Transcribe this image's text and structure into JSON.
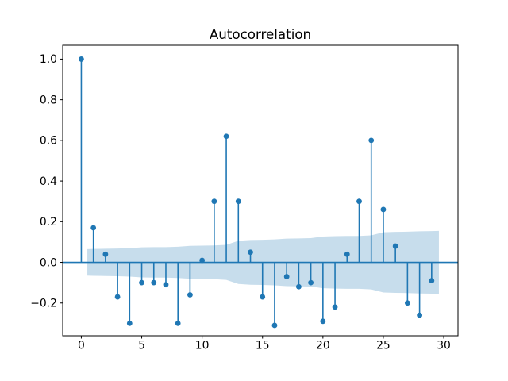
{
  "chart_data": {
    "type": "stem",
    "title": "Autocorrelation",
    "xlabel": "",
    "ylabel": "",
    "x": [
      0,
      1,
      2,
      3,
      4,
      5,
      6,
      7,
      8,
      9,
      10,
      11,
      12,
      13,
      14,
      15,
      16,
      17,
      18,
      19,
      20,
      21,
      22,
      23,
      24,
      25,
      26,
      27,
      28,
      29
    ],
    "values": [
      1.0,
      0.17,
      0.04,
      -0.17,
      -0.3,
      -0.1,
      -0.1,
      -0.11,
      -0.3,
      -0.16,
      0.01,
      0.3,
      0.62,
      0.3,
      0.05,
      -0.17,
      -0.31,
      -0.07,
      -0.12,
      -0.1,
      -0.29,
      -0.22,
      0.04,
      0.3,
      0.6,
      0.26,
      0.08,
      -0.2,
      -0.26,
      -0.09
    ],
    "confidence_band": {
      "symmetric_about_zero": true,
      "x": [
        0.5,
        1,
        2,
        3,
        4,
        5,
        6,
        7,
        8,
        9,
        10,
        11,
        12,
        13,
        14,
        15,
        16,
        17,
        18,
        19,
        20,
        21,
        22,
        23,
        24,
        25,
        26,
        27,
        28,
        29,
        29.6
      ],
      "half_width": [
        0.065,
        0.066,
        0.067,
        0.068,
        0.07,
        0.074,
        0.075,
        0.075,
        0.077,
        0.081,
        0.082,
        0.083,
        0.086,
        0.106,
        0.11,
        0.111,
        0.113,
        0.117,
        0.118,
        0.119,
        0.127,
        0.129,
        0.13,
        0.13,
        0.133,
        0.148,
        0.15,
        0.151,
        0.153,
        0.154,
        0.155
      ]
    },
    "x_ticks": {
      "values": [
        0,
        5,
        10,
        15,
        20,
        25,
        30
      ],
      "labels": [
        "0",
        "5",
        "10",
        "15",
        "20",
        "25",
        "30"
      ]
    },
    "y_ticks": {
      "values": [
        1.0,
        0.8,
        0.6,
        0.4,
        0.2,
        0.0,
        -0.2
      ],
      "labels": [
        "1.0",
        "0.8",
        "0.6",
        "0.4",
        "0.2",
        "0.0",
        "−0.2"
      ]
    },
    "xlim": [
      -1.54,
      31.18
    ],
    "ylim": [
      -0.361,
      1.068
    ],
    "baseline": 0.0,
    "grid": false,
    "legend_position": "none",
    "colors": {
      "stem": "#1f77b4",
      "marker": "#1f77b4",
      "band": "#1f77b4",
      "axis": "#000000",
      "background": "#ffffff"
    },
    "band_opacity": 0.25
  }
}
